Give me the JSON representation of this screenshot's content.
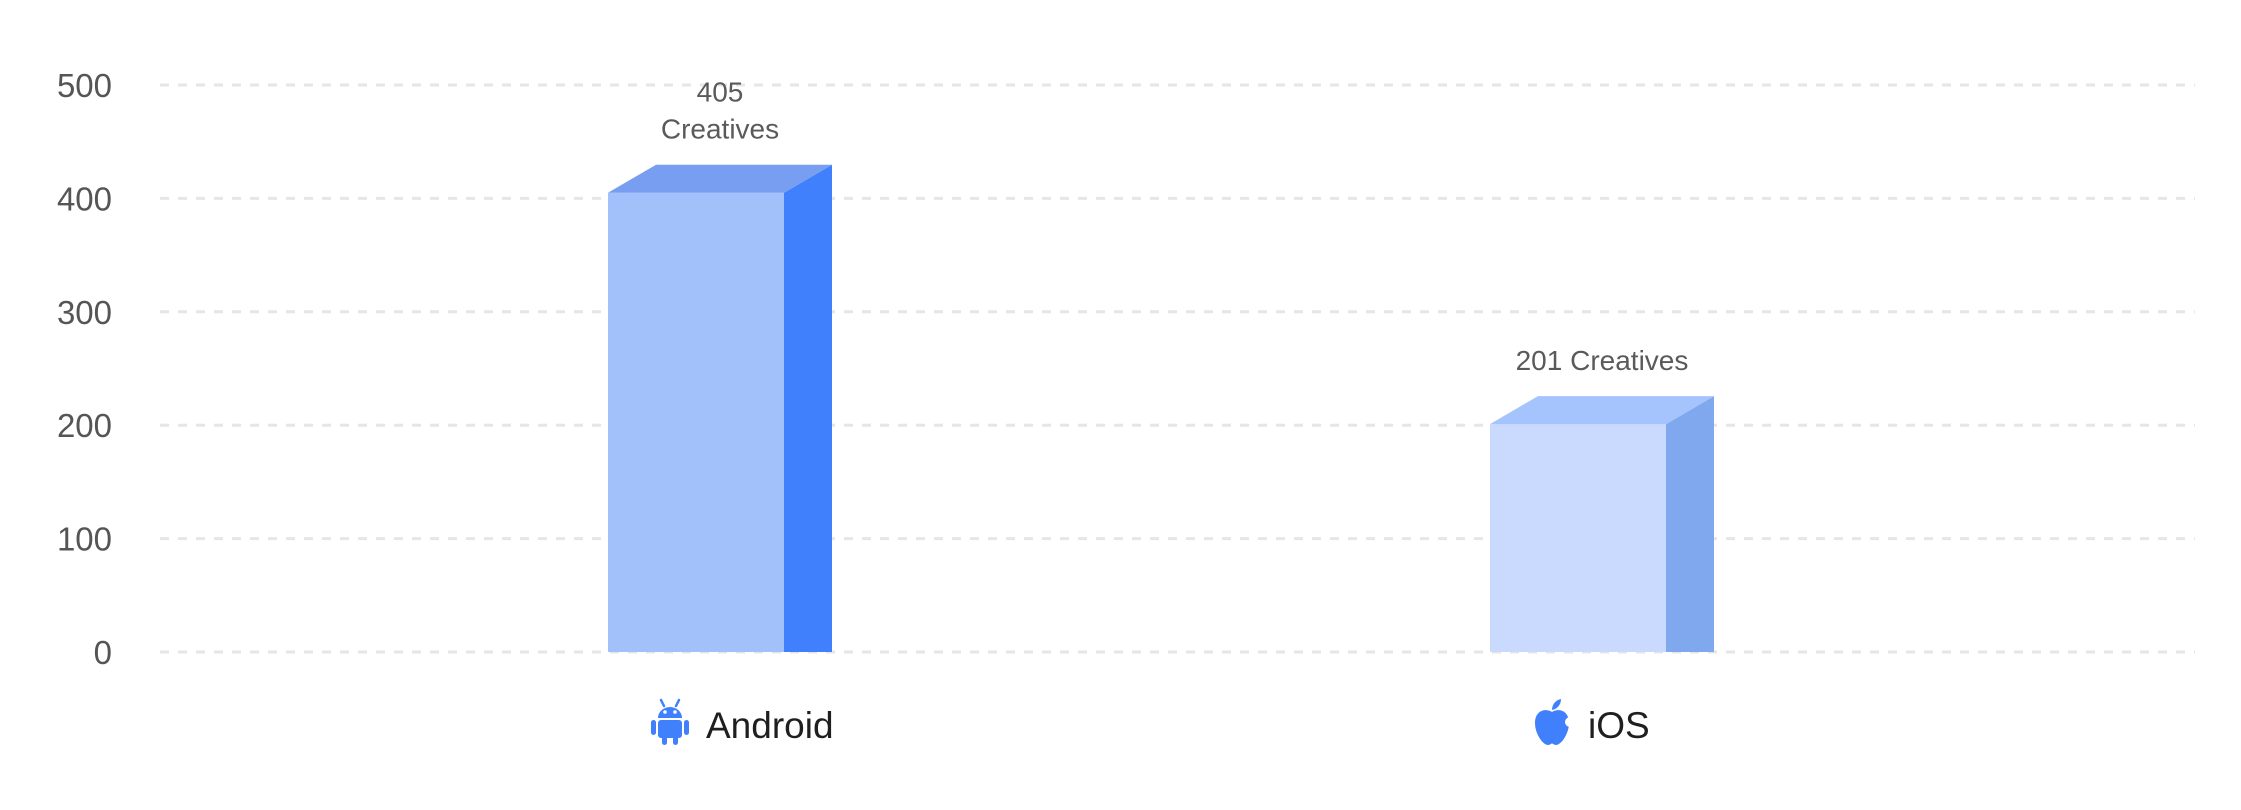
{
  "chart_data": {
    "type": "bar",
    "title": "",
    "xlabel": "",
    "ylabel": "",
    "categories": [
      "Android",
      "iOS"
    ],
    "values": [
      405,
      201
    ],
    "data_labels": [
      [
        "405",
        "Creatives"
      ],
      [
        "201 Creatives"
      ]
    ],
    "category_icons": [
      "android-icon",
      "apple-icon"
    ],
    "ylim": [
      0,
      500
    ],
    "yticks": [
      0,
      100,
      200,
      300,
      400,
      500
    ],
    "ytick_labels": [
      "0",
      "100",
      "200",
      "300",
      "400",
      "500"
    ],
    "grid": true,
    "legend": "none",
    "colors": {
      "android": {
        "front": "#a2c1fb",
        "side": "#4080fc",
        "top": "#779ef0"
      },
      "ios": {
        "front": "#c9dafe",
        "side": "#80a8ee",
        "top": "#a5c3fd"
      },
      "icon": "#4080fc",
      "grid": "#e6e6e6",
      "tick_text": "#555555",
      "label_text": "#5a5a5a",
      "category_text": "#1f1f1f"
    }
  }
}
